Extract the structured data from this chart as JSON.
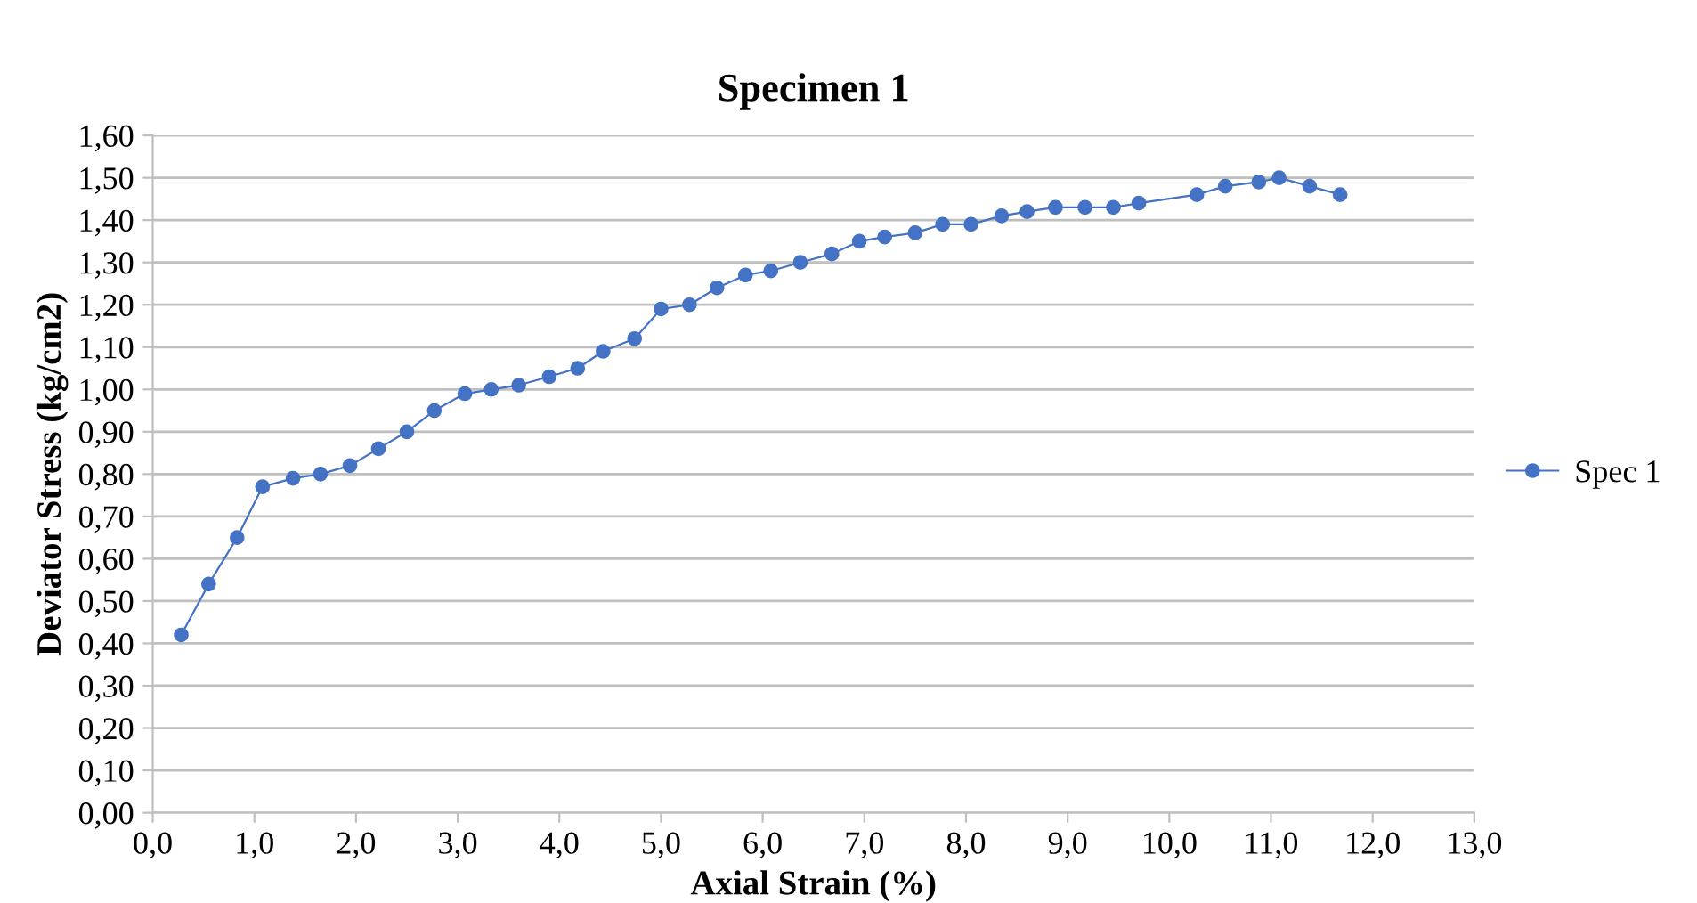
{
  "chart_data": {
    "type": "line",
    "title": "Specimen 1",
    "xlabel": "Axial Strain (%)",
    "ylabel": "Deviator Stress (kg/cm2)",
    "x": [
      0.28,
      0.55,
      0.83,
      1.08,
      1.38,
      1.65,
      1.94,
      2.22,
      2.5,
      2.77,
      3.07,
      3.33,
      3.6,
      3.9,
      4.18,
      4.43,
      4.74,
      5.0,
      5.28,
      5.55,
      5.83,
      6.08,
      6.37,
      6.68,
      6.95,
      7.2,
      7.5,
      7.77,
      8.05,
      8.35,
      8.6,
      8.88,
      9.17,
      9.45,
      9.7,
      10.27,
      10.55,
      10.88,
      11.08,
      11.38,
      11.68
    ],
    "series": [
      {
        "name": "Spec 1",
        "color": "#4472c4",
        "values": [
          0.42,
          0.54,
          0.65,
          0.77,
          0.79,
          0.8,
          0.82,
          0.86,
          0.9,
          0.95,
          0.99,
          1.0,
          1.01,
          1.03,
          1.05,
          1.09,
          1.12,
          1.19,
          1.2,
          1.24,
          1.27,
          1.28,
          1.3,
          1.32,
          1.35,
          1.36,
          1.37,
          1.39,
          1.39,
          1.41,
          1.42,
          1.43,
          1.43,
          1.43,
          1.44,
          1.46,
          1.48,
          1.49,
          1.5,
          1.48,
          1.46
        ]
      }
    ],
    "xlim": [
      0,
      13
    ],
    "ylim": [
      0,
      1.6
    ],
    "xticks": [
      {
        "value": 0,
        "label": "0,0"
      },
      {
        "value": 1,
        "label": "1,0"
      },
      {
        "value": 2,
        "label": "2,0"
      },
      {
        "value": 3,
        "label": "3,0"
      },
      {
        "value": 4,
        "label": "4,0"
      },
      {
        "value": 5,
        "label": "5,0"
      },
      {
        "value": 6,
        "label": "6,0"
      },
      {
        "value": 7,
        "label": "7,0"
      },
      {
        "value": 8,
        "label": "8,0"
      },
      {
        "value": 9,
        "label": "9,0"
      },
      {
        "value": 10,
        "label": "10,0"
      },
      {
        "value": 11,
        "label": "11,0"
      },
      {
        "value": 12,
        "label": "12,0"
      },
      {
        "value": 13,
        "label": "13,0"
      }
    ],
    "yticks": [
      {
        "value": 0,
        "label": "0,00"
      },
      {
        "value": 0.1,
        "label": "0,10"
      },
      {
        "value": 0.2,
        "label": "0,20"
      },
      {
        "value": 0.3,
        "label": "0,30"
      },
      {
        "value": 0.4,
        "label": "0,40"
      },
      {
        "value": 0.5,
        "label": "0,50"
      },
      {
        "value": 0.6,
        "label": "0,60"
      },
      {
        "value": 0.7,
        "label": "0,70"
      },
      {
        "value": 0.8,
        "label": "0,80"
      },
      {
        "value": 0.9,
        "label": "0,90"
      },
      {
        "value": 1.0,
        "label": "1,00"
      },
      {
        "value": 1.1,
        "label": "1,10"
      },
      {
        "value": 1.2,
        "label": "1,20"
      },
      {
        "value": 1.3,
        "label": "1,30"
      },
      {
        "value": 1.4,
        "label": "1,40"
      },
      {
        "value": 1.5,
        "label": "1,50"
      },
      {
        "value": 1.6,
        "label": "1,60"
      }
    ],
    "grid": "y",
    "legend": "right",
    "marker": "circle",
    "line_style": "solid"
  }
}
